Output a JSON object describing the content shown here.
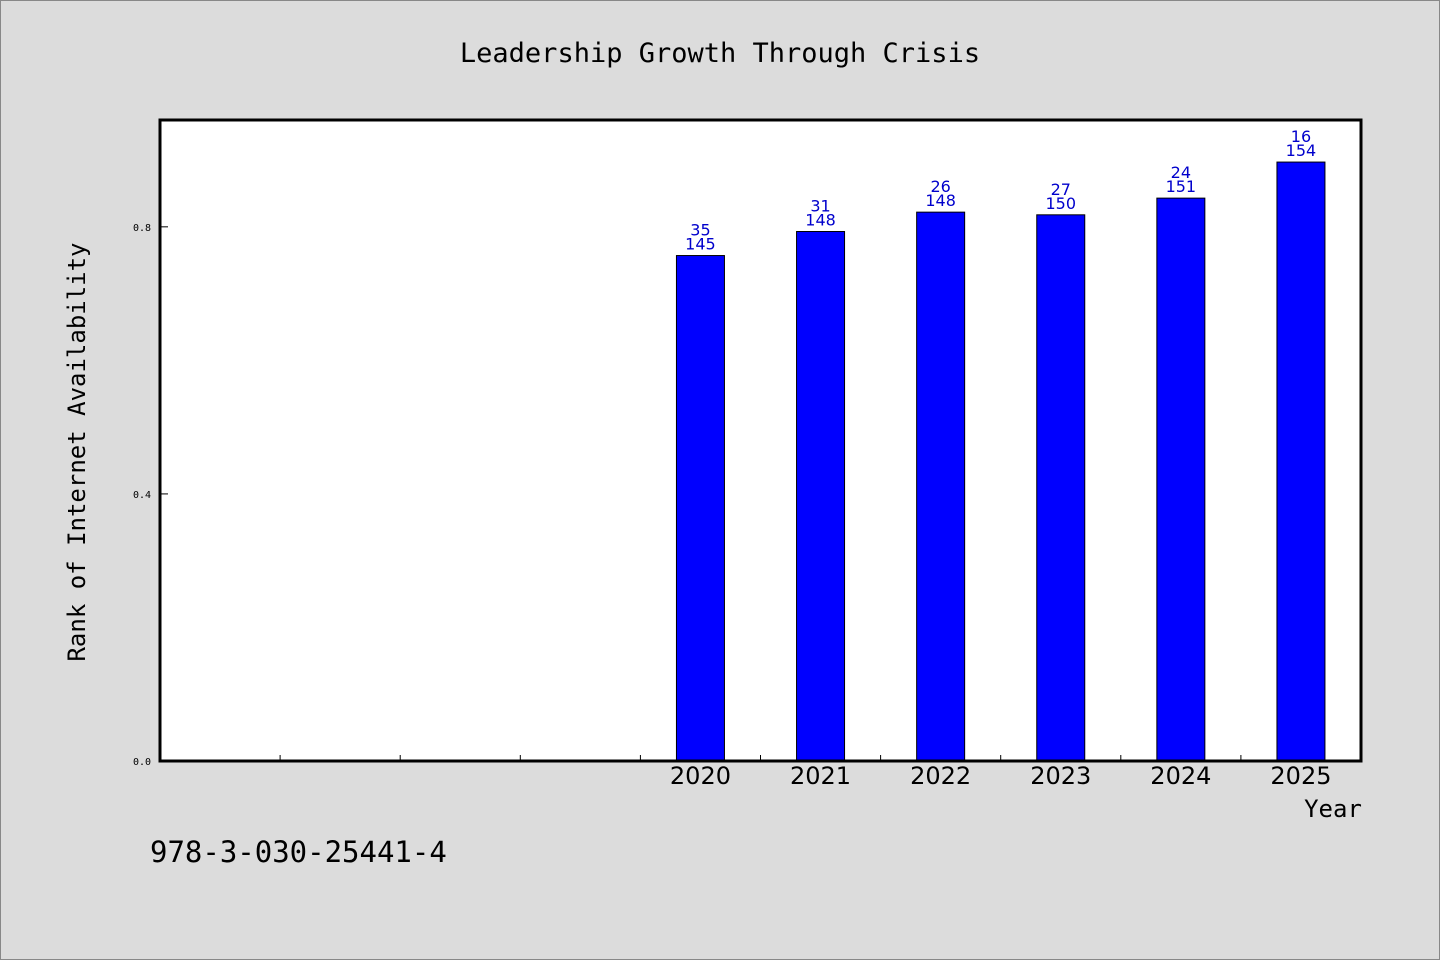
{
  "chart_data": {
    "type": "bar",
    "title": "Leadership Growth Through Crisis",
    "xlabel": "Year",
    "ylabel": "Rank of Internet Availability",
    "categories": [
      "",
      "",
      "",
      "",
      "2020",
      "2021",
      "2022",
      "2023",
      "2024",
      "2025"
    ],
    "values": [
      null,
      null,
      null,
      null,
      0.757,
      0.793,
      0.822,
      0.818,
      0.843,
      0.897
    ],
    "label_top": [
      null,
      null,
      null,
      null,
      "35",
      "31",
      "26",
      "27",
      "24",
      "16"
    ],
    "label_bottom": [
      null,
      null,
      null,
      null,
      "145",
      "148",
      "148",
      "150",
      "151",
      "154"
    ],
    "ylim": [
      0,
      0.96
    ],
    "yticks": [
      0.0,
      0.4,
      0.8
    ],
    "ytick_labels": [
      "0.0",
      "0.4",
      "0.8"
    ],
    "grid": false,
    "bar_color": "#0000ff",
    "label_color": "#0000cc"
  },
  "footnote": "978-3-030-25441-4"
}
